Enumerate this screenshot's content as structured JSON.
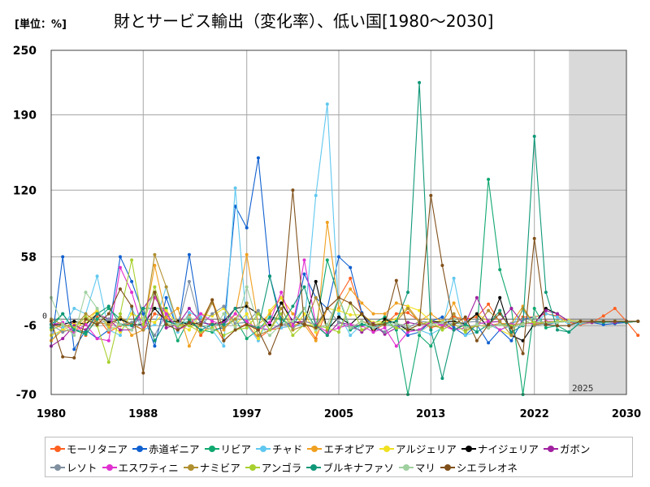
{
  "header": {
    "unit": "[単位：%]",
    "title": "財とサービス輸出（変化率）、低い国[1980～2030]"
  },
  "chart_data": {
    "type": "line",
    "title": "財とサービス輸出（変化率）、低い国[1980～2030]",
    "unit": "[単位：%]",
    "xlim": [
      1980,
      2030
    ],
    "ylim": [
      -70,
      250
    ],
    "x_ticks": [
      "1980",
      "1988",
      "1997",
      "2005",
      "2013",
      "2022",
      "2030"
    ],
    "y_ticks": [
      "250",
      "190",
      "120",
      "58",
      "-6",
      "-70"
    ],
    "zero_label": "0",
    "forecast_start": 2025,
    "forecast_label": "2025",
    "grid": true,
    "legend_position": "bottom",
    "series": [
      {
        "name": "モーリタニア",
        "color": "#ff6020",
        "start": 1980,
        "values": [
          -5,
          -8,
          -3,
          -15,
          2,
          -12,
          -6,
          -4,
          -10,
          5,
          2,
          -8,
          4,
          -15,
          -2,
          -20,
          -10,
          -4,
          -18,
          -10,
          -8,
          -6,
          -2,
          -18,
          10,
          20,
          38,
          5,
          -10,
          -5,
          5,
          6,
          -2,
          -8,
          -5,
          2,
          0,
          2,
          14,
          -3,
          -8,
          2,
          2,
          5,
          3,
          -3,
          -5,
          -3,
          3,
          10,
          -2,
          -15
        ]
      },
      {
        "name": "赤道ギニア",
        "color": "#1060d0",
        "start": 1980,
        "values": [
          -25,
          58,
          -28,
          -10,
          -18,
          -10,
          58,
          35,
          5,
          -25,
          20,
          -10,
          60,
          -6,
          -10,
          -8,
          105,
          85,
          150,
          40,
          0,
          -8,
          42,
          20,
          10,
          58,
          48,
          6,
          -8,
          -12,
          -5,
          -15,
          -12,
          -2,
          2,
          -8,
          -15,
          -5,
          -22,
          -10,
          -20,
          0,
          2,
          -5,
          -3,
          -2,
          -4,
          -3,
          -5,
          -4,
          -3,
          -2
        ]
      },
      {
        "name": "リビア",
        "color": "#10a870",
        "start": 1980,
        "values": [
          -8,
          5,
          -10,
          -14,
          0,
          10,
          0,
          -4,
          10,
          10,
          10,
          -20,
          0,
          -10,
          -12,
          -6,
          0,
          -18,
          -10,
          2,
          0,
          -6,
          10,
          -8,
          55,
          20,
          -10,
          -5,
          -4,
          2,
          -10,
          -70,
          -15,
          -25,
          -5,
          -4,
          -4,
          -12,
          130,
          46,
          10,
          -70,
          10,
          -8,
          -6,
          -12,
          -3,
          -3,
          -3,
          -2,
          -3,
          -2
        ]
      },
      {
        "name": "チャド",
        "color": "#60c8f0",
        "start": 1980,
        "values": [
          -20,
          -8,
          10,
          5,
          40,
          -10,
          -15,
          10,
          -10,
          -5,
          30,
          -12,
          6,
          2,
          -10,
          -25,
          122,
          -5,
          -20,
          5,
          -8,
          -6,
          -6,
          115,
          200,
          5,
          -15,
          -5,
          -8,
          -4,
          -8,
          -10,
          -10,
          -14,
          -8,
          38,
          -15,
          -12,
          -5,
          -10,
          -6,
          8,
          -5,
          5,
          2,
          -5,
          -4,
          -3,
          -2,
          -3,
          -2,
          -2
        ]
      },
      {
        "name": "エチオピア",
        "color": "#f0a020",
        "start": 1980,
        "values": [
          -20,
          -10,
          -12,
          0,
          8,
          -8,
          2,
          -15,
          -10,
          50,
          2,
          10,
          -25,
          -3,
          18,
          -10,
          5,
          60,
          -5,
          5,
          20,
          5,
          -5,
          -20,
          90,
          10,
          28,
          15,
          5,
          5,
          15,
          12,
          -2,
          5,
          -3,
          15,
          -8,
          -6,
          -6,
          -4,
          -4,
          12,
          -6,
          -4,
          -3,
          -2,
          -3,
          -3,
          -2,
          -2,
          -2,
          -2
        ]
      },
      {
        "name": "アルジェリア",
        "color": "#f0e020",
        "start": 1980,
        "values": [
          -15,
          -10,
          -5,
          -4,
          8,
          -6,
          -12,
          5,
          0,
          -3,
          8,
          -5,
          -10,
          5,
          3,
          10,
          -5,
          5,
          -18,
          8,
          20,
          -10,
          5,
          -12,
          10,
          8,
          4,
          4,
          -3,
          -2,
          0,
          12,
          8,
          -2,
          -2,
          -10,
          -5,
          5,
          -2,
          -10,
          -15,
          10,
          -5,
          -3,
          -2,
          -1,
          -2,
          -2,
          -2,
          -2,
          -2,
          -2
        ]
      },
      {
        "name": "ナイジェリア",
        "color": "#000000",
        "start": 1980,
        "values": [
          -5,
          -5,
          -2,
          -5,
          5,
          -3,
          0,
          -5,
          -5,
          10,
          -2,
          -2,
          -5,
          -3,
          -5,
          -2,
          10,
          12,
          5,
          -5,
          15,
          -2,
          -5,
          35,
          -10,
          2,
          -5,
          5,
          -12,
          0,
          -4,
          -10,
          -10,
          -2,
          -3,
          -2,
          -4,
          5,
          -8,
          20,
          -15,
          -20,
          -4,
          10,
          5,
          -2,
          -2,
          -2,
          -2,
          -3,
          -2,
          -2
        ]
      },
      {
        "name": "ガボン",
        "color": "#a020a0",
        "start": 1980,
        "values": [
          -25,
          -18,
          -6,
          -10,
          5,
          0,
          -10,
          -10,
          10,
          25,
          -8,
          -5,
          10,
          -3,
          -5,
          -3,
          10,
          -5,
          -8,
          -10,
          -5,
          -3,
          -2,
          -5,
          -15,
          -3,
          -5,
          -12,
          -4,
          -14,
          -8,
          -3,
          -5,
          -4,
          -3,
          -10,
          -4,
          20,
          -3,
          -2,
          10,
          -4,
          -4,
          8,
          5,
          -2,
          -3,
          -3,
          -2,
          -3,
          -2,
          -2
        ]
      },
      {
        "name": "レソト",
        "color": "#8090a0",
        "start": 1980,
        "values": [
          -5,
          -12,
          -8,
          2,
          -5,
          0,
          -5,
          -3,
          0,
          -15,
          5,
          -8,
          35,
          -6,
          5,
          12,
          -4,
          -3,
          8,
          -10,
          -4,
          -8,
          -2,
          -5,
          10,
          -3,
          -8,
          -10,
          -6,
          -12,
          -5,
          -8,
          -2,
          -3,
          -5,
          -4,
          -3,
          -2,
          -6,
          -5,
          -4,
          0,
          -6,
          -4,
          -3,
          -2,
          -2,
          -2,
          -2,
          -2,
          -2,
          -2
        ]
      },
      {
        "name": "エスワティニ",
        "color": "#e030d0",
        "start": 1980,
        "values": [
          -5,
          -3,
          -12,
          -5,
          -18,
          -20,
          48,
          25,
          -10,
          20,
          5,
          -10,
          -5,
          5,
          -2,
          -5,
          5,
          -2,
          -10,
          -3,
          25,
          -6,
          55,
          -5,
          -12,
          -8,
          -5,
          -6,
          -12,
          -8,
          -25,
          -12,
          -10,
          -2,
          -6,
          -10,
          -8,
          -5,
          -2,
          -10,
          -5,
          -4,
          -4,
          -2,
          -2,
          -2,
          -2,
          -2,
          -2,
          -2,
          -2,
          -2
        ]
      },
      {
        "name": "ナミビア",
        "color": "#b09030",
        "start": 1980,
        "values": [
          0,
          -5,
          -8,
          5,
          -3,
          -5,
          2,
          -5,
          -10,
          60,
          30,
          -4,
          -6,
          -6,
          15,
          -8,
          0,
          15,
          -15,
          -10,
          10,
          -10,
          -6,
          20,
          -10,
          20,
          -8,
          -2,
          -5,
          -4,
          -2,
          10,
          -3,
          -6,
          -8,
          5,
          -10,
          -6,
          8,
          -2,
          -15,
          10,
          -5,
          -3,
          -2,
          -2,
          -2,
          -2,
          -2,
          -2,
          -2,
          -2
        ]
      },
      {
        "name": "アンゴラ",
        "color": "#a8d030",
        "start": 1980,
        "values": [
          -10,
          -5,
          -8,
          2,
          -6,
          -40,
          5,
          55,
          -5,
          30,
          -4,
          -6,
          -6,
          -12,
          -8,
          -15,
          -10,
          -8,
          5,
          -10,
          5,
          -15,
          -5,
          -6,
          -8,
          -12,
          15,
          -10,
          -5,
          -3,
          -8,
          -10,
          -5,
          -2,
          -10,
          -4,
          -12,
          -5,
          -8,
          -5,
          -6,
          -4,
          -3,
          -3,
          -2,
          -2,
          -2,
          -2,
          -2,
          -2,
          -2,
          -2
        ]
      },
      {
        "name": "ブルキナファソ",
        "color": "#109878",
        "start": 1980,
        "values": [
          -5,
          5,
          -10,
          -12,
          5,
          12,
          -5,
          -6,
          10,
          -20,
          -2,
          -5,
          -2,
          -10,
          -5,
          -5,
          10,
          -5,
          -8,
          40,
          -5,
          12,
          30,
          -6,
          -15,
          20,
          -8,
          -5,
          -8,
          -4,
          -2,
          25,
          220,
          -10,
          -55,
          -10,
          -5,
          -12,
          -5,
          8,
          -12,
          -6,
          170,
          25,
          -10,
          -12,
          -3,
          -2,
          -3,
          -2,
          -3,
          -2
        ]
      },
      {
        "name": "マリ",
        "color": "#a0d0a0",
        "start": 1980,
        "values": [
          20,
          -5,
          -15,
          25,
          10,
          -10,
          -5,
          -10,
          0,
          25,
          -5,
          -5,
          2,
          -5,
          -10,
          5,
          -8,
          30,
          -5,
          -15,
          -5,
          -2,
          10,
          -10,
          -5,
          20,
          -8,
          -2,
          -8,
          -5,
          -4,
          -6,
          -12,
          -5,
          -3,
          0,
          -8,
          -5,
          -8,
          -5,
          -8,
          -5,
          2,
          -4,
          -3,
          -2,
          -3,
          -2,
          -2,
          -2,
          -2,
          -2
        ]
      },
      {
        "name": "シエラレオネ",
        "color": "#80501a",
        "start": 1980,
        "values": [
          -2,
          -35,
          -36,
          0,
          -5,
          5,
          28,
          12,
          -50,
          25,
          -5,
          -10,
          -3,
          -5,
          18,
          -20,
          -10,
          -5,
          -10,
          -32,
          -5,
          120,
          -5,
          -8,
          10,
          20,
          15,
          5,
          -5,
          -5,
          36,
          -10,
          -5,
          115,
          50,
          -5,
          2,
          -20,
          -5,
          5,
          -8,
          -32,
          75,
          -5,
          -6,
          -6,
          -2,
          -2,
          -2,
          -2,
          -2,
          -2
        ]
      }
    ]
  }
}
